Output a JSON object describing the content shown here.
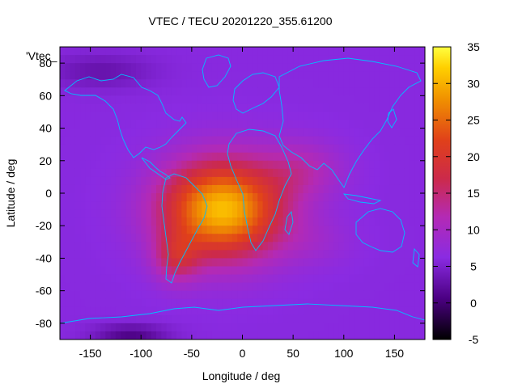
{
  "chart_data": {
    "type": "heatmap",
    "title": "VTEC / TECU 20201220_355.61200",
    "xlabel": "Longitude / deg",
    "ylabel": "Latitude / deg",
    "legend_entry": "'Vtec_",
    "xlim": [
      -180,
      180
    ],
    "ylim": [
      -90,
      90
    ],
    "x_ticks": [
      -150,
      -100,
      -50,
      0,
      50,
      100,
      150
    ],
    "y_ticks": [
      -80,
      -60,
      -40,
      -20,
      0,
      20,
      40,
      60,
      80
    ],
    "colorbar": {
      "range": [
        -5,
        35
      ],
      "ticks": [
        -5,
        0,
        5,
        10,
        15,
        20,
        25,
        30,
        35
      ],
      "palette": [
        "#000000",
        "#4b0082",
        "#8a2be2",
        "#cc2a6a",
        "#e0401a",
        "#f08a00",
        "#ffd000",
        "#ffff40"
      ]
    },
    "grid": false,
    "coastline_color": "#00bfff",
    "field": {
      "background_tecu": 6,
      "anomalies": [
        {
          "lon": -20,
          "lat": -10,
          "sigma_lon": 60,
          "sigma_lat": 30,
          "amp_tecu": 25
        },
        {
          "lon": -65,
          "lat": -40,
          "sigma_lon": 22,
          "sigma_lat": 15,
          "amp_tecu": 8
        },
        {
          "lon": 60,
          "lat": 15,
          "sigma_lon": 40,
          "sigma_lat": 18,
          "amp_tecu": 5
        },
        {
          "lon": 70,
          "lat": -30,
          "sigma_lon": 40,
          "sigma_lat": 15,
          "amp_tecu": 2
        },
        {
          "lon": -140,
          "lat": 75,
          "sigma_lon": 50,
          "sigma_lat": 10,
          "amp_tecu": -3
        },
        {
          "lon": -110,
          "lat": -87,
          "sigma_lon": 35,
          "sigma_lat": 6,
          "amp_tecu": -5
        }
      ]
    }
  }
}
